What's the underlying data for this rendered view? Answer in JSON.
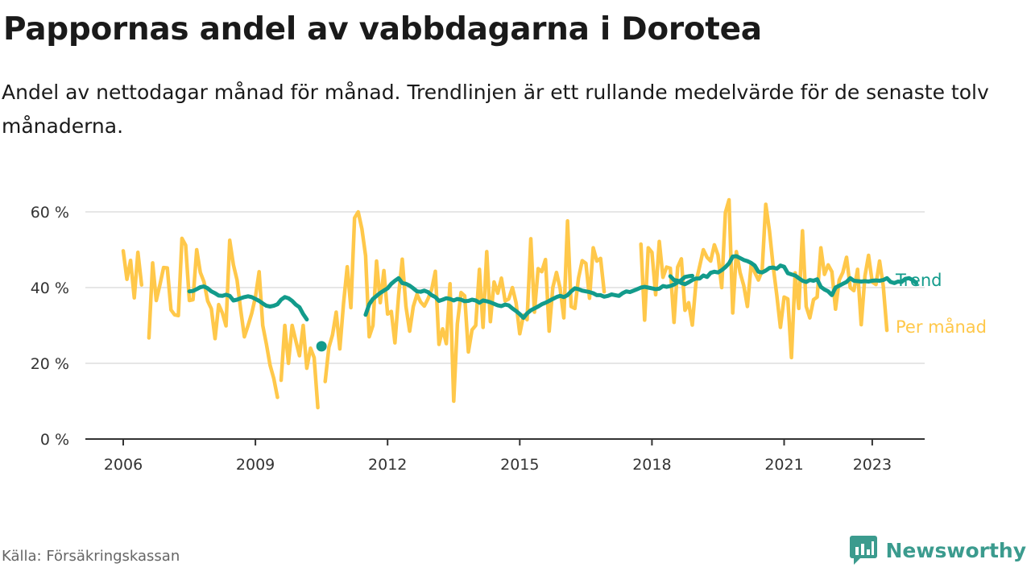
{
  "title": "Pappornas andel av vabbdagarna i Dorotea",
  "subtitle": "Andel av nettodagar månad för månad. Trendlinjen är ett rullande medelvärde för de senaste tolv månaderna.",
  "source": "Källa: Försäkringskassan",
  "brand": "Newsworthy",
  "colors": {
    "monthly": "#ffc84a",
    "trend": "#129b8b",
    "grid": "#dddddd",
    "axis": "#333333",
    "brand": "#3b9b8e"
  },
  "chart_data": {
    "type": "line",
    "x_unit": "month",
    "ylim": [
      0,
      60
    ],
    "y_ticks": [
      0,
      20,
      40,
      60
    ],
    "y_tick_labels": [
      "0 %",
      "20 %",
      "40 %",
      "60 %"
    ],
    "x_ticks": [
      "2006",
      "2009",
      "2012",
      "2015",
      "2018",
      "2021",
      "2023"
    ],
    "legend_placement": "right, at end of lines",
    "grid": "horizontal",
    "series": [
      {
        "name": "Per månad",
        "color": "#ffc84a",
        "segments": [
          {
            "start": "2006-01",
            "values": [
              49.7,
              42.2,
              47.2,
              37.3,
              49.3,
              40.7
            ]
          },
          {
            "start": "2006-08",
            "values": [
              26.7,
              46.5,
              36.6,
              40.8,
              45.3,
              45.2,
              34.1,
              32.8,
              32.6,
              53.0,
              51.2,
              36.6,
              36.8,
              50.0,
              44.0,
              41.5,
              36.5,
              34.4,
              26.5,
              35.5,
              33.3,
              29.9,
              52.5,
              46.0,
              42.0,
              34.0,
              27.0,
              30.0,
              33.2,
              37.5,
              44.2,
              30.0,
              25.0,
              19.5,
              16.0,
              11.0
            ]
          },
          {
            "start": "2009-08",
            "values": [
              15.5,
              30.0,
              20.0,
              30.0,
              26.0,
              22.0,
              30.0,
              18.7,
              24.0,
              21.5,
              8.3
            ]
          },
          {
            "start": "2010-08",
            "values": [
              15.2,
              24.2,
              27.5,
              33.5,
              23.8,
              35.8,
              45.5,
              34.7,
              58.4,
              60.0,
              55.5,
              48.4,
              27.0,
              30.0,
              47.0,
              36.0,
              44.5,
              33.0,
              33.7,
              25.4,
              38.0,
              47.5,
              35.0,
              28.5,
              35.0,
              38.2,
              36.2,
              35.1,
              37.0,
              39.5,
              44.3,
              25.0,
              29.1,
              25.2,
              41.0,
              10.0,
              30.4,
              38.7,
              37.8,
              23.0,
              28.8,
              30.0,
              44.8,
              29.5,
              49.5,
              31.0,
              41.5,
              38.5,
              42.5,
              36.5,
              37.0,
              40.0,
              36.0,
              27.8,
              32.7,
              31.5,
              52.9,
              33.5,
              45.0,
              44.2,
              47.4,
              28.5,
              40.0,
              44.0,
              39.8,
              32.0,
              57.6,
              35.0,
              34.5,
              42.5,
              47.1,
              46.4,
              37.2,
              50.5,
              47.0,
              47.7,
              38.9
            ]
          },
          {
            "start": "2017-10",
            "values": [
              51.5,
              31.4,
              50.5,
              49.3,
              38.1,
              52.2,
              42.7,
              45.4,
              45.1,
              30.8,
              45.4,
              47.6,
              34.0,
              36.0,
              30.1,
              41.5,
              45.7,
              50.0,
              48.0,
              47.0,
              51.3,
              48.6,
              40.0,
              59.8,
              63.2,
              33.3,
              49.5,
              44.0,
              40.5,
              35.0,
              46.0,
              44.0,
              42.0,
              44.5,
              62.0,
              55.0,
              45.8,
              38.0,
              29.5,
              37.5,
              37.0,
              21.5,
              43.9,
              34.5,
              55.0,
              35.0,
              32.0,
              36.8,
              37.5,
              50.5,
              43.5,
              46.0,
              44.2,
              34.3,
              42.0,
              44.0,
              48.0,
              40.0,
              39.2,
              44.8,
              30.2,
              43.0,
              48.5,
              41.5,
              40.8,
              47.0,
              40.4,
              28.7
            ]
          }
        ]
      },
      {
        "name": "Trend",
        "color": "#129b8b",
        "segments": [
          {
            "start": "2007-07",
            "values": [
              39.0,
              39.1,
              39.6,
              40.1,
              40.3,
              39.8,
              39.0,
              38.5,
              37.9,
              37.8,
              38.1,
              37.8,
              36.6,
              36.8,
              37.2,
              37.5,
              37.7,
              37.5,
              37.0,
              36.5,
              35.8,
              35.2,
              35.0,
              35.2,
              35.6,
              36.8,
              37.5,
              37.2,
              36.5,
              35.5,
              34.8,
              33.0,
              31.6
            ]
          },
          {
            "start": "2010-07",
            "values": [
              24.5
            ]
          },
          {
            "start": "2011-07",
            "values": [
              32.8,
              35.6,
              37.0,
              37.8,
              38.6,
              39.2,
              39.8,
              41.0,
              41.8,
              42.5,
              41.2,
              41.0,
              40.5,
              39.8,
              39.0,
              38.9,
              39.2,
              38.8,
              38.0,
              37.5,
              36.5,
              36.8,
              37.2,
              37.0,
              36.6,
              37.0,
              36.8,
              36.4,
              36.5,
              36.8,
              36.6,
              36.0,
              36.6,
              36.4,
              36.1,
              35.7,
              35.3,
              35.1,
              35.5,
              35.3,
              34.5,
              33.8,
              33.0,
              32.0,
              33.2,
              34.0,
              34.5,
              35.0,
              35.6,
              36.0,
              36.5,
              37.0,
              37.5,
              37.8,
              37.5,
              38.0,
              39.0,
              39.8,
              39.6,
              39.2,
              39.0,
              38.8,
              38.5,
              38.0,
              38.0,
              37.6,
              37.8,
              38.2,
              38.0,
              37.8,
              38.5,
              39.0,
              38.8,
              39.2,
              39.6,
              40.0,
              40.2,
              40.0,
              39.8,
              39.6,
              39.7,
              40.4,
              40.2,
              40.4,
              40.8,
              41.4,
              42.0,
              42.8,
              43.0,
              43.1
            ]
          },
          {
            "start": "2018-06",
            "values": [
              43.0,
              42.0,
              41.8,
              41.2,
              40.9,
              41.4,
              42.0,
              42.4,
              42.4,
              43.2,
              42.8,
              43.9,
              44.2,
              44.0,
              44.6,
              45.4,
              46.4,
              48.2,
              48.3,
              47.8,
              47.3,
              47.0,
              46.5,
              45.8,
              44.2,
              44.0,
              44.5,
              45.2,
              45.3,
              45.0,
              45.8,
              45.5,
              43.8,
              43.5,
              43.2,
              42.5,
              41.8,
              41.5,
              42.0,
              41.8,
              42.2,
              40.2,
              39.5,
              39.0,
              38.0,
              40.0,
              40.5,
              41.0,
              41.5,
              42.5,
              41.8,
              41.7,
              41.6,
              41.7,
              41.6,
              41.8,
              41.9,
              41.8,
              42.0,
              42.5,
              41.5,
              41.2,
              41.6,
              41.5,
              42.3,
              42.5,
              42.0,
              41.2
            ]
          }
        ]
      }
    ]
  }
}
